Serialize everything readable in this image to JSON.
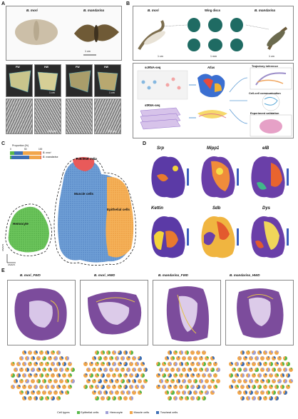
{
  "panels": {
    "a": "A",
    "b": "B",
    "c": "C",
    "d": "D",
    "e": "E"
  },
  "panel_a": {
    "species_left": "B. mori",
    "species_right": "B. mandarina",
    "scale_top": "1 cm",
    "fw": "FW",
    "hw": "HW",
    "scale_wing": "1 cm",
    "scale_sem": "200 μm"
  },
  "panel_b": {
    "species_left": "B. mori",
    "species_right": "B. mandarina",
    "wing_discs": "Wing discs",
    "scale1": "1 cm",
    "scale2": "1 mm",
    "scale3": "1 cm",
    "scrna": "scRNA-seq",
    "strna": "stRNA-seq",
    "atlas": "Atlas",
    "out1": "Trajectory inference",
    "out2": "Cell-cell communication",
    "out3": "Experiment validation"
  },
  "panel_c": {
    "prop_title": "Proportion (%)",
    "prop_ticks": [
      "0",
      "50",
      "100"
    ],
    "prop_rows": [
      "B. mori",
      "B. mandarina"
    ],
    "labels": {
      "tracheal": "Tracheal cells",
      "muscle": "Muscle cells",
      "epithelial": "Epithelial cells",
      "hemocyte": "Hemocyte"
    },
    "axis_x": "UMAP1",
    "axis_y": "UMAP2"
  },
  "panel_d": {
    "genes": [
      "Srp",
      "Mipp1",
      "elB",
      "Kettin",
      "Sdb",
      "Dys"
    ]
  },
  "panel_e": {
    "titles": [
      "B. mori_FWD",
      "B. mori_HWD",
      "B. mandarina_FWD",
      "B. mandarina_HWD"
    ],
    "legend_title": "Cell types",
    "legend": [
      "Epithelial cells",
      "Hemocyte",
      "Muscle cells",
      "Tracheal cells"
    ]
  },
  "colors": {
    "epithelial": "#58b84a",
    "hemocyte": "#9f9fd6",
    "muscle": "#f1a64b",
    "tracheal": "#3d6fb5",
    "he_purple": "#7c4c9c"
  }
}
